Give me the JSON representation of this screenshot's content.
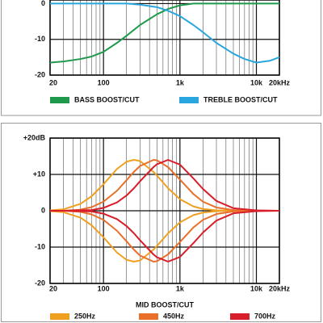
{
  "chart_data": [
    {
      "type": "line",
      "xscale": "log",
      "grid": true,
      "xlim": [
        20,
        20000
      ],
      "xticks": [
        20,
        100,
        {
          "value": 1000,
          "label": "1k"
        },
        {
          "value": 10000,
          "label": "10k"
        },
        {
          "value": 20000,
          "label": "20kHz"
        }
      ],
      "ylim": [
        -20,
        1
      ],
      "yticks": [
        0,
        -10,
        -20
      ],
      "x": [
        20,
        30,
        50,
        70,
        100,
        150,
        200,
        300,
        500,
        700,
        1000,
        1500,
        2000,
        3000,
        5000,
        7000,
        10000,
        15000,
        20000
      ],
      "series": [
        {
          "name": "BASS BOOST/CUT",
          "color": "#1f9a4c",
          "values": [
            -16.5,
            -16.2,
            -15.5,
            -14.8,
            -13.5,
            -11,
            -9,
            -6,
            -3,
            -1.5,
            -0.5,
            0,
            0,
            0,
            0,
            0,
            0,
            0,
            0
          ]
        },
        {
          "name": "TREBLE BOOST/CUT",
          "color": "#2aa6de",
          "values": [
            0,
            0,
            0,
            0,
            0,
            0,
            0,
            -0.3,
            -1,
            -2,
            -3.5,
            -6,
            -8,
            -11,
            -14,
            -15.5,
            -16.5,
            -16,
            -15
          ]
        }
      ]
    },
    {
      "type": "line",
      "xscale": "log",
      "grid": true,
      "xlabel": "MID BOOST/CUT",
      "xlim": [
        20,
        20000
      ],
      "xticks": [
        20,
        100,
        {
          "value": 1000,
          "label": "1k"
        },
        {
          "value": 10000,
          "label": "10k"
        },
        {
          "value": 20000,
          "label": "20kHz"
        }
      ],
      "ylim": [
        -20,
        20
      ],
      "yticks": [
        {
          "value": 20,
          "label": "+20dB"
        },
        {
          "value": 10,
          "label": "+10"
        },
        0,
        -10,
        -20
      ],
      "x": [
        20,
        30,
        50,
        70,
        100,
        150,
        200,
        250,
        300,
        450,
        500,
        700,
        1000,
        1500,
        2000,
        3000,
        5000,
        10000,
        20000
      ],
      "series": [
        {
          "name": "250Hz",
          "color": "#f0a020",
          "values": [
            0.1,
            0.4,
            1.9,
            4.0,
            7.3,
            11.5,
            13.5,
            14,
            13.7,
            10.7,
            9.7,
            6.2,
            3.2,
            1.2,
            0.5,
            0.1,
            0,
            0,
            0
          ]
        },
        {
          "color": "#f0a020",
          "values": [
            -0.1,
            -0.4,
            -1.9,
            -4.0,
            -7.3,
            -11.5,
            -13.5,
            -14,
            -13.7,
            -10.7,
            -9.7,
            -6.2,
            -3.2,
            -1.2,
            -0.5,
            -0.1,
            0,
            0,
            0
          ]
        },
        {
          "name": "450Hz",
          "color": "#e8702a",
          "values": [
            0,
            0,
            0.3,
            1.0,
            2.5,
            5.5,
            8.4,
            10.7,
            12.3,
            14,
            13.9,
            12.0,
            8.6,
            4.6,
            2.5,
            0.9,
            0.2,
            0,
            0
          ]
        },
        {
          "color": "#e8702a",
          "values": [
            0,
            0,
            -0.3,
            -1.0,
            -2.5,
            -5.5,
            -8.4,
            -10.7,
            -12.3,
            -14,
            -13.9,
            -12.0,
            -8.6,
            -4.6,
            -2.5,
            -0.9,
            -0.2,
            0,
            0
          ]
        },
        {
          "name": "700Hz",
          "color": "#d81e2a",
          "values": [
            0,
            0,
            0.1,
            0.2,
            0.8,
            2.3,
            4.2,
            6.2,
            8.1,
            12.0,
            12.8,
            14,
            12.7,
            8.9,
            6.0,
            2.7,
            0.7,
            0.1,
            0
          ]
        },
        {
          "color": "#d81e2a",
          "values": [
            0,
            0,
            -0.1,
            -0.2,
            -0.8,
            -2.3,
            -4.2,
            -6.2,
            -8.1,
            -12.0,
            -12.8,
            -14,
            -12.7,
            -8.9,
            -6.0,
            -2.7,
            -0.7,
            -0.1,
            0
          ]
        }
      ]
    }
  ]
}
